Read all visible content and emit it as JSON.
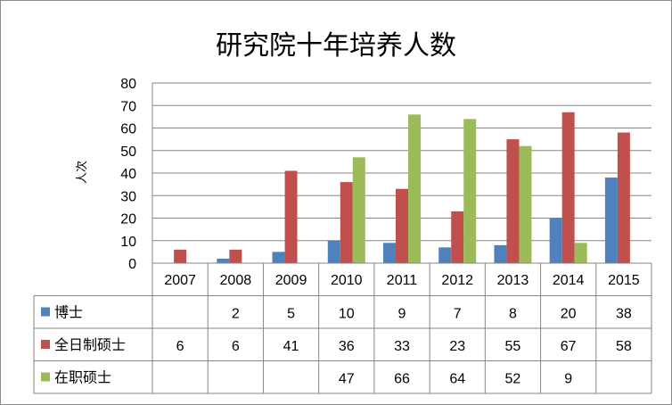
{
  "chart_data": {
    "type": "bar",
    "title": "研究院十年培养人数",
    "ylabel": "人次",
    "xlabel": "",
    "ylim": [
      0,
      80
    ],
    "yticks": [
      0,
      10,
      20,
      30,
      40,
      50,
      60,
      70,
      80
    ],
    "categories": [
      "2007",
      "2008",
      "2009",
      "2010",
      "2011",
      "2012",
      "2013",
      "2014",
      "2015"
    ],
    "grid": true,
    "legend": "data-table",
    "series": [
      {
        "name": "博士",
        "color": "#4F81BD",
        "values": [
          null,
          2,
          5,
          10,
          9,
          7,
          8,
          20,
          38
        ]
      },
      {
        "name": "全日制硕士",
        "color": "#C0504D",
        "values": [
          6,
          6,
          41,
          36,
          33,
          23,
          55,
          67,
          58
        ]
      },
      {
        "name": "在职硕士",
        "color": "#9BBB59",
        "values": [
          null,
          null,
          null,
          47,
          66,
          64,
          52,
          9,
          null
        ]
      }
    ]
  }
}
